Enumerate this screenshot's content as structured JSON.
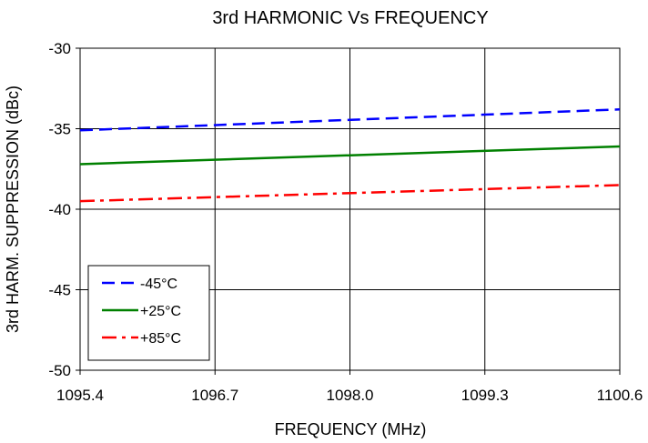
{
  "chart_data": {
    "type": "line",
    "title": "3rd HARMONIC Vs FREQUENCY",
    "xlabel": "FREQUENCY (MHz)",
    "ylabel": "3rd HARM. SUPPRESSION (dBc)",
    "xlim": [
      1095.4,
      1100.6
    ],
    "ylim": [
      -50,
      -30
    ],
    "x_ticks": [
      "1095.4",
      "1096.7",
      "1098.0",
      "1099.3",
      "1100.6"
    ],
    "y_ticks": [
      "-30",
      "-35",
      "-40",
      "-45",
      "-50"
    ],
    "grid": true,
    "legend_position": "bottom-left",
    "series": [
      {
        "name": "-45°C",
        "color": "#0000ff",
        "dash": "dashed",
        "x": [
          1095.4,
          1100.6
        ],
        "y": [
          -35.1,
          -33.8
        ]
      },
      {
        "name": "+25°C",
        "color": "#008000",
        "dash": "solid",
        "x": [
          1095.4,
          1100.6
        ],
        "y": [
          -37.2,
          -36.1
        ]
      },
      {
        "name": "+85°C",
        "color": "#ff0000",
        "dash": "dashdot",
        "x": [
          1095.4,
          1100.6
        ],
        "y": [
          -39.5,
          -38.5
        ]
      }
    ]
  }
}
